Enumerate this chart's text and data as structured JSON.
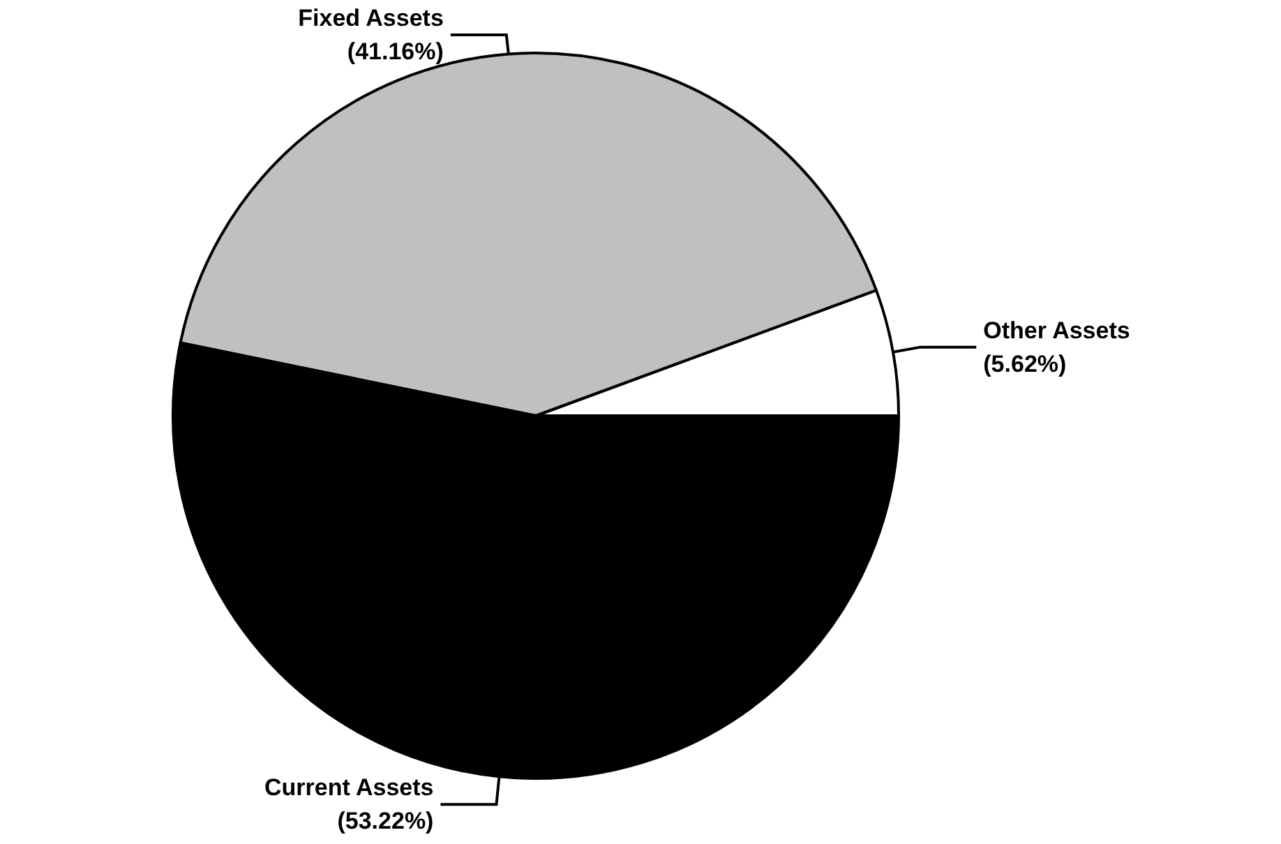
{
  "chart_data": {
    "type": "pie",
    "categories": [
      "Other Assets",
      "Fixed Assets",
      "Current Assets"
    ],
    "values": [
      5.62,
      41.16,
      53.22
    ],
    "value_labels": [
      "(5.62%)",
      "(41.16%)",
      "(53.22%)"
    ],
    "colors": [
      "#ffffff",
      "#c0c0c0",
      "#000000"
    ],
    "legend": false
  }
}
